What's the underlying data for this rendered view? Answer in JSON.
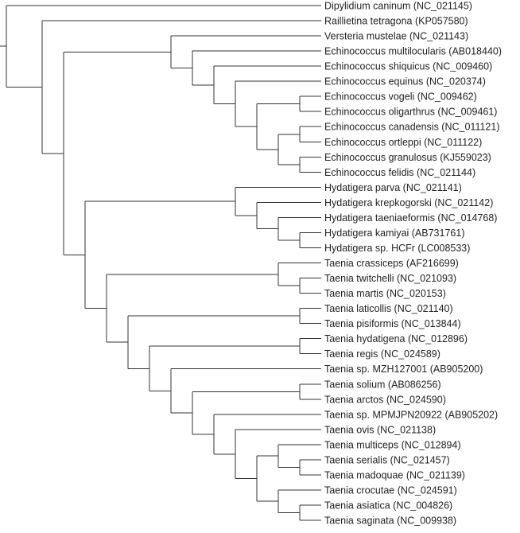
{
  "tree": {
    "name": "root",
    "children": [
      {
        "name": "Dipylidium caninum (NC_021145)"
      },
      {
        "children": [
          {
            "name": "Raillietina tetragona (KP057580)"
          },
          {
            "children": [
              {
                "children": [
                  {
                    "name": "Versteria mustelae (NC_021143)"
                  },
                  {
                    "children": [
                      {
                        "name": "Echinococcus multilocularis (AB018440)"
                      },
                      {
                        "children": [
                          {
                            "name": "Echinococcus shiquicus (NC_009460)"
                          },
                          {
                            "children": [
                              {
                                "name": "Echinococcus equinus (NC_020374)"
                              },
                              {
                                "children": [
                                  {
                                    "children": [
                                      {
                                        "name": "Echinococcus vogeli (NC_009462)"
                                      },
                                      {
                                        "name": "Echinococcus oligarthrus (NC_009461)"
                                      }
                                    ]
                                  },
                                  {
                                    "children": [
                                      {
                                        "children": [
                                          {
                                            "name": "Echinococcus canadensis (NC_011121)"
                                          },
                                          {
                                            "name": "Echinococcus ortleppi (NC_011122)"
                                          }
                                        ]
                                      },
                                      {
                                        "children": [
                                          {
                                            "name": "Echinococcus granulosus (KJ559023)"
                                          },
                                          {
                                            "name": "Echinococcus felidis (NC_021144)"
                                          }
                                        ]
                                      }
                                    ]
                                  }
                                ]
                              }
                            ]
                          }
                        ]
                      }
                    ]
                  }
                ]
              },
              {
                "children": [
                  {
                    "children": [
                      {
                        "name": "Hydatigera parva (NC_021141)"
                      },
                      {
                        "children": [
                          {
                            "name": "Hydatigera krepkogorski (NC_021142)"
                          },
                          {
                            "children": [
                              {
                                "name": "Hydatigera taeniaeformis (NC_014768)"
                              },
                              {
                                "children": [
                                  {
                                    "name": "Hydatigera kamiyai (AB731761)"
                                  },
                                  {
                                    "name": "Hydatigera sp. HCFr (LC008533)"
                                  }
                                ]
                              }
                            ]
                          }
                        ]
                      }
                    ]
                  },
                  {
                    "children": [
                      {
                        "children": [
                          {
                            "name": "Taenia crassiceps (AF216699)"
                          },
                          {
                            "children": [
                              {
                                "name": "Taenia twitchelli (NC_021093)"
                              },
                              {
                                "name": "Taenia martis (NC_020153)"
                              }
                            ]
                          }
                        ]
                      },
                      {
                        "children": [
                          {
                            "children": [
                              {
                                "name": "Taenia laticollis (NC_021140)"
                              },
                              {
                                "name": "Taenia pisiformis (NC_013844)"
                              }
                            ]
                          },
                          {
                            "children": [
                              {
                                "children": [
                                  {
                                    "name": "Taenia hydatigena (NC_012896)"
                                  },
                                  {
                                    "name": "Taenia regis (NC_024589)"
                                  }
                                ]
                              },
                              {
                                "children": [
                                  {
                                    "name": "Taenia sp. MZH127001 (AB905200)"
                                  },
                                  {
                                    "children": [
                                      {
                                        "children": [
                                          {
                                            "name": "Taenia solium (AB086256)"
                                          },
                                          {
                                            "name": "Taenia arctos (NC_024590)"
                                          }
                                        ]
                                      },
                                      {
                                        "children": [
                                          {
                                            "name": "Taenia sp. MPMJPN20922 (AB905202)"
                                          },
                                          {
                                            "children": [
                                              {
                                                "name": "Taenia ovis (NC_021138)"
                                              },
                                              {
                                                "children": [
                                                  {
                                                    "children": [
                                                      {
                                                        "name": "Taenia multiceps (NC_012894)"
                                                      },
                                                      {
                                                        "children": [
                                                          {
                                                            "name": "Taenia serialis (NC_021457)"
                                                          },
                                                          {
                                                            "name": "Taenia madoquae (NC_021139)"
                                                          }
                                                        ]
                                                      }
                                                    ]
                                                  },
                                                  {
                                                    "children": [
                                                      {
                                                        "name": "Taenia crocutae (NC_024591)"
                                                      },
                                                      {
                                                        "children": [
                                                          {
                                                            "name": "Taenia asiatica (NC_004826)"
                                                          },
                                                          {
                                                            "name": "Taenia saginata (NC_009938)"
                                                          }
                                                        ]
                                                      }
                                                    ]
                                                  }
                                                ]
                                              }
                                            ]
                                          }
                                        ]
                                      }
                                    ]
                                  }
                                ]
                              }
                            ]
                          }
                        ]
                      }
                    ]
                  }
                ]
              }
            ]
          }
        ]
      }
    ]
  }
}
